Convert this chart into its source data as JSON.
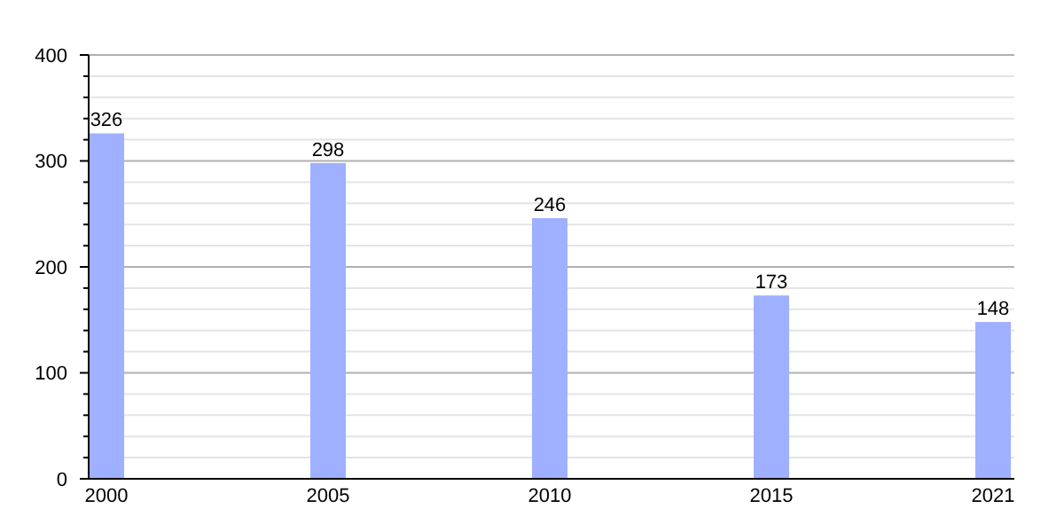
{
  "chart_data": {
    "type": "bar",
    "categories": [
      "2000",
      "2005",
      "2010",
      "2015",
      "2021"
    ],
    "values": [
      326,
      298,
      246,
      173,
      148
    ],
    "color": "#9eb0ff",
    "data_labels": true,
    "ylim": [
      0,
      400
    ],
    "yticks": [
      0,
      {
        "value": 20,
        "label": null
      },
      {
        "value": 40,
        "label": null
      },
      {
        "value": 60,
        "label": null
      },
      {
        "value": 80,
        "label": null
      },
      100,
      {
        "value": 120,
        "label": null
      },
      {
        "value": 140,
        "label": null
      },
      {
        "value": 160,
        "label": null
      },
      {
        "value": 180,
        "label": null
      },
      200,
      {
        "value": 220,
        "label": null
      },
      {
        "value": 240,
        "label": null
      },
      {
        "value": 260,
        "label": null
      },
      {
        "value": 280,
        "label": null
      },
      300,
      {
        "value": 320,
        "label": null
      },
      {
        "value": 340,
        "label": null
      },
      {
        "value": 360,
        "label": null
      },
      {
        "value": 380,
        "label": null
      },
      400
    ],
    "grid": true
  }
}
